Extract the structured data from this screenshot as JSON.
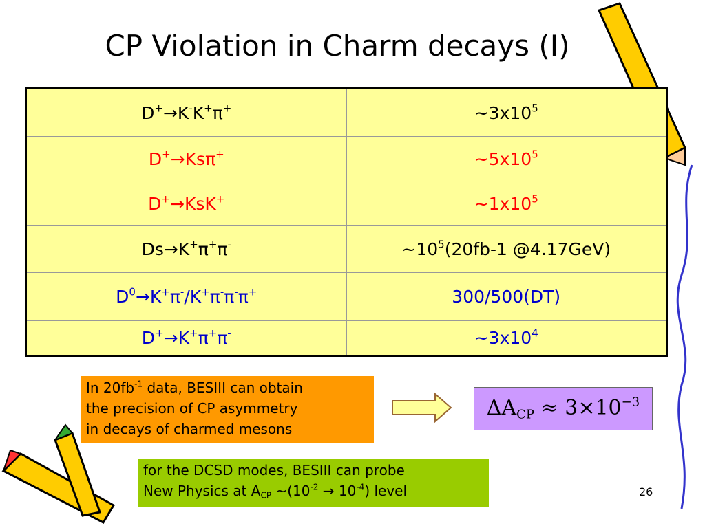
{
  "title": "CP Violation in Charm decays (I)",
  "table": {
    "rows": [
      {
        "color": "#000000",
        "cells": [
          [
            {
              "t": "D"
            },
            {
              "t": "+",
              "pos": "sup"
            },
            {
              "t": "→K"
            },
            {
              "t": "-",
              "pos": "sup"
            },
            {
              "t": "K"
            },
            {
              "t": "+",
              "pos": "sup"
            },
            {
              "t": "π"
            },
            {
              "t": "+",
              "pos": "sup"
            }
          ],
          [
            {
              "t": "~3x10"
            },
            {
              "t": "5",
              "pos": "sup"
            }
          ]
        ]
      },
      {
        "color": "#ff0000",
        "cells": [
          [
            {
              "t": "D"
            },
            {
              "t": "+",
              "pos": "sup"
            },
            {
              "t": "→Ksπ"
            },
            {
              "t": "+",
              "pos": "sup"
            }
          ],
          [
            {
              "t": "~5x10"
            },
            {
              "t": "5",
              "pos": "sup"
            }
          ]
        ]
      },
      {
        "color": "#ff0000",
        "cells": [
          [
            {
              "t": "D"
            },
            {
              "t": "+",
              "pos": "sup"
            },
            {
              "t": "→KsK"
            },
            {
              "t": "+",
              "pos": "sup"
            }
          ],
          [
            {
              "t": "~1x10"
            },
            {
              "t": "5",
              "pos": "sup"
            }
          ]
        ]
      },
      {
        "color": "#000000",
        "cells": [
          [
            {
              "t": "Ds→K"
            },
            {
              "t": "+",
              "pos": "sup"
            },
            {
              "t": "π"
            },
            {
              "t": "+",
              "pos": "sup"
            },
            {
              "t": "π"
            },
            {
              "t": "-",
              "pos": "sup"
            }
          ],
          [
            {
              "t": "~10"
            },
            {
              "t": "5",
              "pos": "sup"
            },
            {
              "t": "(20fb-1 @4.17GeV)"
            }
          ]
        ]
      },
      {
        "color": "#0000cc",
        "cells": [
          [
            {
              "t": "D"
            },
            {
              "t": "0",
              "pos": "sup"
            },
            {
              "t": "→K"
            },
            {
              "t": "+",
              "pos": "sup"
            },
            {
              "t": "π"
            },
            {
              "t": "-",
              "pos": "sup"
            },
            {
              "t": "/K"
            },
            {
              "t": "+",
              "pos": "sup"
            },
            {
              "t": "π"
            },
            {
              "t": "-",
              "pos": "sup"
            },
            {
              "t": "π"
            },
            {
              "t": "-",
              "pos": "sup"
            },
            {
              "t": "π"
            },
            {
              "t": "+",
              "pos": "sup"
            }
          ],
          [
            {
              "t": "300/500(DT)"
            }
          ]
        ]
      },
      {
        "color": "#0000cc",
        "cells": [
          [
            {
              "t": "D"
            },
            {
              "t": "+",
              "pos": "sup"
            },
            {
              "t": "→K"
            },
            {
              "t": "+",
              "pos": "sup"
            },
            {
              "t": "π"
            },
            {
              "t": "+",
              "pos": "sup"
            },
            {
              "t": "π"
            },
            {
              "t": "-",
              "pos": "sup"
            }
          ],
          [
            {
              "t": "~3x10"
            },
            {
              "t": "4",
              "pos": "sup"
            }
          ]
        ]
      }
    ]
  },
  "note_box": [
    {
      "t": "In 20fb"
    },
    {
      "t": "-1",
      "pos": "sup"
    },
    {
      "t": " data, BESIII can obtain\nthe precision of CP asymmetry\nin decays of charmed mesons"
    }
  ],
  "formula": [
    {
      "t": "ΔA"
    },
    {
      "t": "CP",
      "pos": "sub"
    },
    {
      "t": " ≈ 3×10"
    },
    {
      "t": "−3",
      "pos": "sup"
    }
  ],
  "dcsd_box": [
    {
      "t": "for the DCSD modes,  BESIII can probe\nNew Physics  at A"
    },
    {
      "t": "CP",
      "pos": "sub"
    },
    {
      "t": " ~(10"
    },
    {
      "t": "-2",
      "pos": "sup"
    },
    {
      "t": " → 10"
    },
    {
      "t": "-4",
      "pos": "sup"
    },
    {
      "t": ") level"
    }
  ],
  "page_number": "26"
}
